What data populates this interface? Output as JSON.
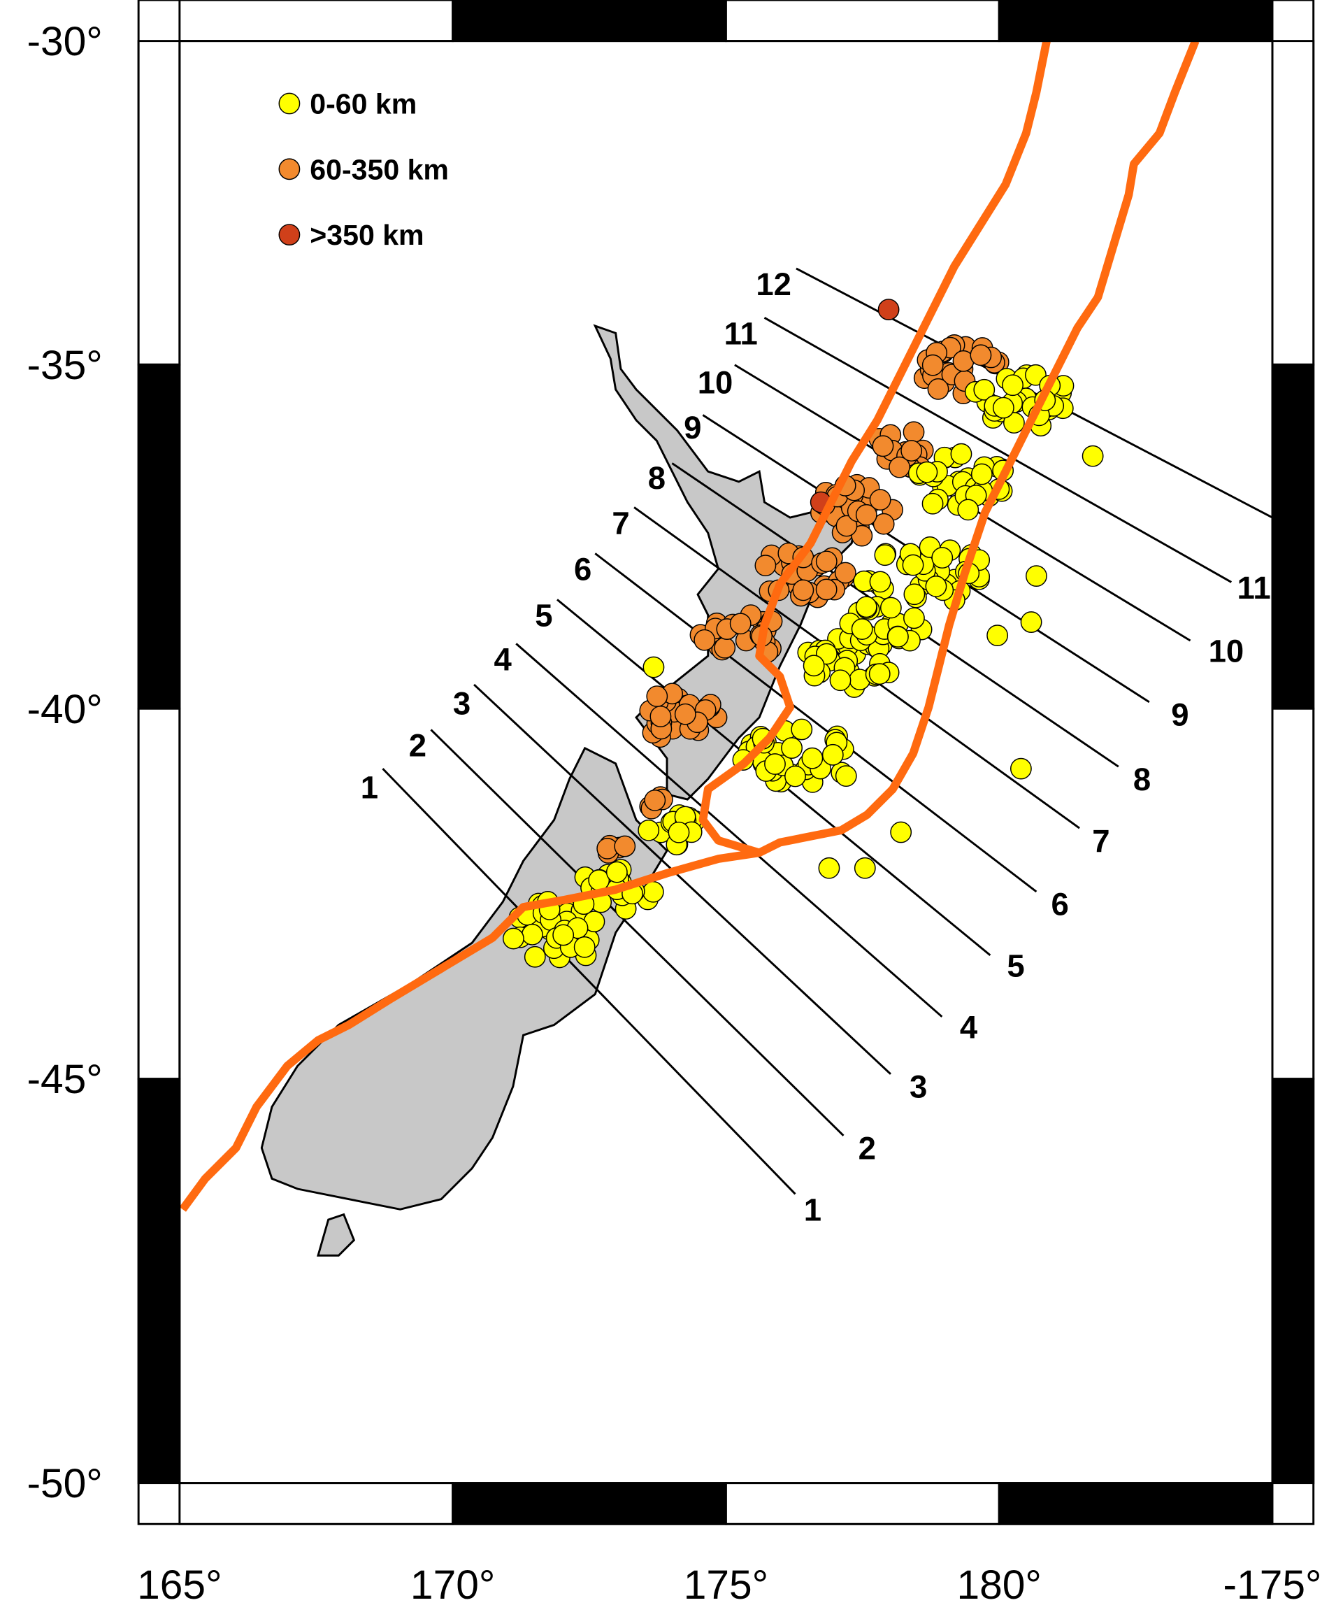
{
  "map": {
    "lat_ticks": [
      {
        "value": -30,
        "label": "-30°"
      },
      {
        "value": -35,
        "label": "-35°"
      },
      {
        "value": -40,
        "label": "-40°"
      },
      {
        "value": -45,
        "label": "-45°"
      },
      {
        "value": -50,
        "label": "-50°"
      }
    ],
    "lon_ticks": [
      {
        "value": 165,
        "label": "165°"
      },
      {
        "value": 170,
        "label": "170°"
      },
      {
        "value": 175,
        "label": "175°"
      },
      {
        "value": 180,
        "label": "180°"
      },
      {
        "value": 185,
        "label": "-175°"
      }
    ],
    "legend": [
      {
        "label": "0-60 km",
        "color": "#ffff00"
      },
      {
        "label": "60-350 km",
        "color": "#f28a2e"
      },
      {
        "label": ">350 km",
        "color": "#d0401a"
      }
    ],
    "profiles": [
      {
        "start_label": "1",
        "end_label": "1"
      },
      {
        "start_label": "2",
        "end_label": "2"
      },
      {
        "start_label": "3",
        "end_label": "3"
      },
      {
        "start_label": "4",
        "end_label": "4"
      },
      {
        "start_label": "5",
        "end_label": "5"
      },
      {
        "start_label": "6",
        "end_label": "6"
      },
      {
        "start_label": "7",
        "end_label": "7"
      },
      {
        "start_label": "8",
        "end_label": "8"
      },
      {
        "start_label": "9",
        "end_label": "9"
      },
      {
        "start_label": "10",
        "end_label": "10"
      },
      {
        "start_label": "11",
        "end_label": "11"
      },
      {
        "start_label": "12"
      }
    ]
  }
}
